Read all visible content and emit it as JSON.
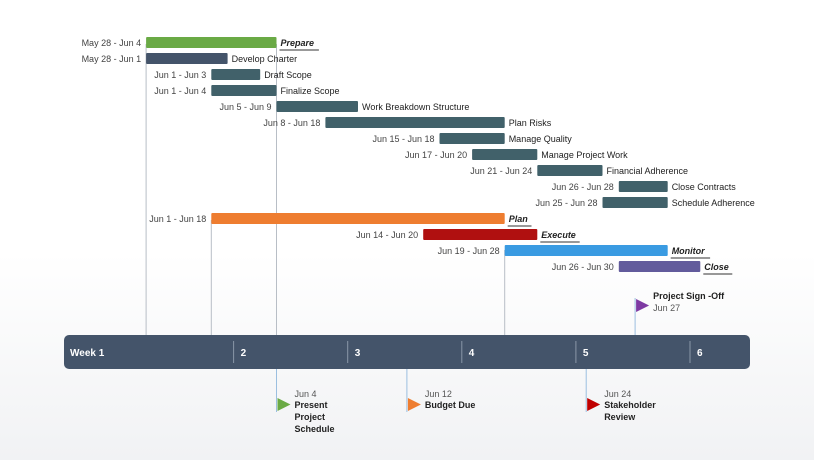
{
  "chart_data": {
    "type": "gantt",
    "title": "",
    "time_unit": "day",
    "x_range": [
      "May 26",
      "Jul 2"
    ],
    "bars": [
      {
        "label": "Prepare",
        "dates": "May 28 - Jun 4",
        "start": 2,
        "end": 10,
        "color": "#6aaa45",
        "style": "group"
      },
      {
        "label": "Develop Charter",
        "dates": "May 28 - Jun 1",
        "start": 2,
        "end": 7,
        "color": "#44546a",
        "style": "task"
      },
      {
        "label": "Draft Scope",
        "dates": "Jun 1 - Jun 3",
        "start": 6,
        "end": 9,
        "color": "#41616a",
        "style": "task"
      },
      {
        "label": "Finalize Scope",
        "dates": "Jun 1 - Jun 4",
        "start": 6,
        "end": 10,
        "color": "#41616a",
        "style": "task"
      },
      {
        "label": "Work Breakdown Structure",
        "dates": "Jun 5 - Jun 9",
        "start": 10,
        "end": 15,
        "color": "#41616a",
        "style": "task"
      },
      {
        "label": "Plan Risks",
        "dates": "Jun 8 - Jun 18",
        "start": 13,
        "end": 24,
        "color": "#41616a",
        "style": "task"
      },
      {
        "label": "Manage Quality",
        "dates": "Jun 15 - Jun 18",
        "start": 20,
        "end": 24,
        "color": "#41616a",
        "style": "task"
      },
      {
        "label": "Manage Project Work",
        "dates": "Jun 17 - Jun 20",
        "start": 22,
        "end": 26,
        "color": "#41616a",
        "style": "task"
      },
      {
        "label": "Financial Adherence",
        "dates": "Jun 21 - Jun 24",
        "start": 26,
        "end": 30,
        "color": "#41616a",
        "style": "task"
      },
      {
        "label": "Close Contracts",
        "dates": "Jun 26 - Jun 28",
        "start": 31,
        "end": 34,
        "color": "#41616a",
        "style": "task"
      },
      {
        "label": "Schedule Adherence",
        "dates": "Jun 25 - Jun 28",
        "start": 30,
        "end": 34,
        "color": "#41616a",
        "style": "task"
      },
      {
        "label": "Plan",
        "dates": "Jun 1 - Jun 18",
        "start": 6,
        "end": 24,
        "color": "#ee7d30",
        "style": "group"
      },
      {
        "label": "Execute",
        "dates": "Jun 14 - Jun 20",
        "start": 19,
        "end": 26,
        "color": "#b01010",
        "style": "group"
      },
      {
        "label": "Monitor",
        "dates": "Jun 19 - Jun 28",
        "start": 24,
        "end": 34,
        "color": "#3a9be2",
        "style": "group"
      },
      {
        "label": "Close",
        "dates": "Jun 26 - Jun 30",
        "start": 31,
        "end": 36,
        "color": "#625b9c",
        "style": "group"
      }
    ],
    "milestones_above": [
      {
        "label": "Project Sign -Off",
        "date": "Jun 27",
        "day": 32,
        "color": "#7e3aa3"
      }
    ],
    "milestones_below": [
      {
        "label": "Present Project Schedule",
        "date": "Jun 4",
        "day": 10,
        "color": "#6aaa45"
      },
      {
        "label": "Budget Due",
        "date": "Jun 12",
        "day": 18,
        "color": "#ee7d30"
      },
      {
        "label": "Stakeholder Review",
        "date": "Jun 24",
        "day": 29,
        "color": "#c00000"
      }
    ],
    "timeline": {
      "color": "#44546a",
      "weeks": [
        {
          "label": "Week 1",
          "start": 0
        },
        {
          "label": "2",
          "start": 7
        },
        {
          "label": "3",
          "start": 14
        },
        {
          "label": "4",
          "start": 21
        },
        {
          "label": "5",
          "start": 28
        },
        {
          "label": "6",
          "start": 35
        }
      ]
    }
  }
}
